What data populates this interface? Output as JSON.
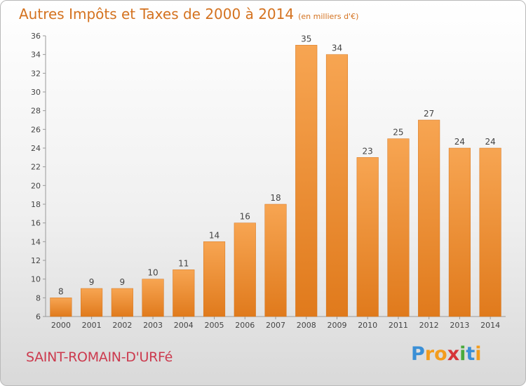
{
  "title": "Autres Impôts et Taxes de 2000 à 2014",
  "unit": "(en milliers d'€)",
  "commune": "SAINT-ROMAIN-D'URFé",
  "logo": {
    "letters": [
      "P",
      "r",
      "o",
      "x",
      "i",
      "t",
      "i"
    ],
    "colors": [
      "#3a8fd6",
      "#f39c1e",
      "#f39c1e",
      "#d6343a",
      "#4aaa3c",
      "#3a8fd6",
      "#f39c1e"
    ]
  },
  "chart_data": {
    "type": "bar",
    "categories": [
      "2000",
      "2001",
      "2002",
      "2003",
      "2004",
      "2005",
      "2006",
      "2007",
      "2008",
      "2009",
      "2010",
      "2011",
      "2012",
      "2013",
      "2014"
    ],
    "values": [
      8,
      9,
      9,
      10,
      11,
      14,
      16,
      18,
      35,
      34,
      23,
      25,
      27,
      24,
      24
    ],
    "ylim": [
      6,
      36
    ],
    "yticks": [
      6,
      8,
      10,
      12,
      14,
      16,
      18,
      20,
      22,
      24,
      26,
      28,
      30,
      32,
      34,
      36
    ],
    "grid": false,
    "bar_color": "#f0922e"
  }
}
